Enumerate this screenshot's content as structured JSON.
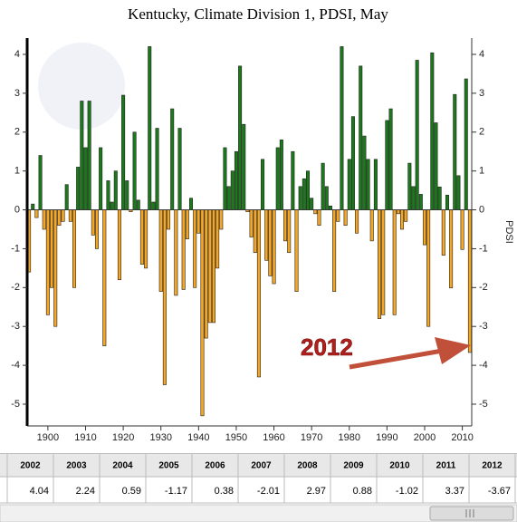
{
  "chart_data": {
    "type": "bar",
    "title": "Kentucky, Climate Division 1, PDSI, May",
    "y_label": "PDSI",
    "x": [
      1895,
      1896,
      1897,
      1898,
      1899,
      1900,
      1901,
      1902,
      1903,
      1904,
      1905,
      1906,
      1907,
      1908,
      1909,
      1910,
      1911,
      1912,
      1913,
      1914,
      1915,
      1916,
      1917,
      1918,
      1919,
      1920,
      1921,
      1922,
      1923,
      1924,
      1925,
      1926,
      1927,
      1928,
      1929,
      1930,
      1931,
      1932,
      1933,
      1934,
      1935,
      1936,
      1937,
      1938,
      1939,
      1940,
      1941,
      1942,
      1943,
      1944,
      1945,
      1946,
      1947,
      1948,
      1949,
      1950,
      1951,
      1952,
      1953,
      1954,
      1955,
      1956,
      1957,
      1958,
      1959,
      1960,
      1961,
      1962,
      1963,
      1964,
      1965,
      1966,
      1967,
      1968,
      1969,
      1970,
      1971,
      1972,
      1973,
      1974,
      1975,
      1976,
      1977,
      1978,
      1979,
      1980,
      1981,
      1982,
      1983,
      1984,
      1985,
      1986,
      1987,
      1988,
      1989,
      1990,
      1991,
      1992,
      1993,
      1994,
      1995,
      1996,
      1997,
      1998,
      1999,
      2000,
      2001,
      2002,
      2003,
      2004,
      2005,
      2006,
      2007,
      2008,
      2009,
      2010,
      2011,
      2012
    ],
    "values": [
      -1.6,
      0.15,
      -0.2,
      1.4,
      -0.5,
      -2.7,
      -2.0,
      -3.0,
      -0.4,
      -0.3,
      0.65,
      -0.3,
      -2.0,
      1.1,
      2.8,
      1.6,
      2.8,
      -0.65,
      -1.0,
      1.6,
      -3.5,
      0.75,
      0.2,
      1.0,
      -1.8,
      2.95,
      0.75,
      -0.05,
      2.0,
      0.25,
      -1.4,
      -1.5,
      4.2,
      0.2,
      2.1,
      -2.1,
      -4.5,
      -0.5,
      2.6,
      -2.2,
      2.1,
      -2.05,
      -0.75,
      0.3,
      -2.0,
      -0.6,
      -5.3,
      -3.3,
      -2.9,
      -2.9,
      -1.5,
      -0.5,
      1.6,
      0.6,
      1.0,
      1.5,
      3.7,
      2.2,
      -0.05,
      -0.7,
      -1.1,
      -4.3,
      1.3,
      -1.3,
      -1.7,
      -1.9,
      1.6,
      1.8,
      -0.8,
      -1.1,
      1.5,
      -2.1,
      0.6,
      0.8,
      1.0,
      0.3,
      -0.1,
      -0.4,
      1.2,
      0.6,
      0.1,
      -2.1,
      -0.3,
      4.2,
      -0.4,
      1.3,
      2.4,
      -0.6,
      3.7,
      1.9,
      1.3,
      -0.8,
      1.3,
      -2.8,
      -2.7,
      2.3,
      2.6,
      -2.7,
      -0.1,
      -0.5,
      -0.3,
      1.2,
      0.6,
      3.85,
      0.4,
      -0.9,
      -3.0,
      4.04,
      2.24,
      0.59,
      -1.17,
      0.38,
      -2.01,
      2.97,
      0.88,
      -1.02,
      3.37,
      -3.67
    ],
    "positive_color": "#1a7a1a",
    "negative_color": "#f5a623",
    "xlim": [
      1894.5,
      2012.5
    ],
    "xticks": [
      1900,
      1910,
      1920,
      1930,
      1940,
      1950,
      1960,
      1970,
      1980,
      1990,
      2000,
      2010
    ],
    "ylim": [
      -5.56,
      4.42
    ],
    "yticks": [
      -5,
      -4,
      -3,
      -2,
      -1,
      0,
      1,
      2,
      3,
      4
    ],
    "annotation": "2012",
    "table_first_index": 107
  }
}
